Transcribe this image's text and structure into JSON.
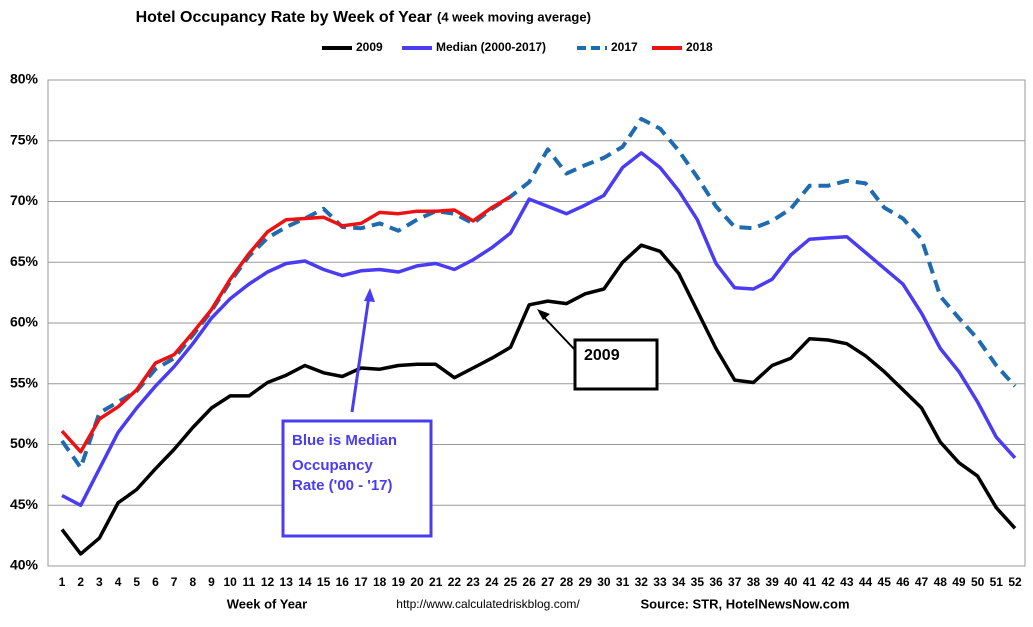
{
  "chart_data": {
    "type": "line",
    "title": "Hotel Occupancy Rate by  Week of Year",
    "subtitle": "(4 week moving average)",
    "x_label": "Week of Year",
    "source_url": "http://www.calculatedriskblog.com/",
    "source": "Source: STR, HotelNewsNow.com",
    "x": [
      1,
      2,
      3,
      4,
      5,
      6,
      7,
      8,
      9,
      10,
      11,
      12,
      13,
      14,
      15,
      16,
      17,
      18,
      19,
      20,
      21,
      22,
      23,
      24,
      25,
      26,
      27,
      28,
      29,
      30,
      31,
      32,
      33,
      34,
      35,
      36,
      37,
      38,
      39,
      40,
      41,
      42,
      43,
      44,
      45,
      46,
      47,
      48,
      49,
      50,
      51,
      52
    ],
    "xlim": [
      1,
      52
    ],
    "ylim": [
      40,
      80
    ],
    "yticks": [
      {
        "value": 40,
        "label": "40%"
      },
      {
        "value": 45,
        "label": "45%"
      },
      {
        "value": 50,
        "label": "50%"
      },
      {
        "value": 55,
        "label": "55%"
      },
      {
        "value": 60,
        "label": "60%"
      },
      {
        "value": 65,
        "label": "65%"
      },
      {
        "value": 70,
        "label": "70%"
      },
      {
        "value": 75,
        "label": "75%"
      },
      {
        "value": 80,
        "label": "80%"
      }
    ],
    "grid": true,
    "legend": "top",
    "series": [
      {
        "name": "2009",
        "color": "#000000",
        "dash": false,
        "values": [
          43.0,
          41.0,
          42.3,
          45.2,
          46.3,
          48.0,
          49.6,
          51.4,
          53.0,
          54.0,
          54.0,
          55.1,
          55.7,
          56.5,
          55.9,
          55.6,
          56.3,
          56.2,
          56.5,
          56.6,
          56.6,
          55.5,
          56.3,
          57.1,
          58.0,
          61.5,
          61.8,
          61.6,
          62.4,
          62.8,
          65.0,
          66.4,
          65.9,
          64.1,
          61.0,
          57.9,
          55.3,
          55.1,
          56.5,
          57.1,
          58.7,
          58.6,
          58.3,
          57.3,
          56.0,
          54.5,
          53.0,
          50.2,
          48.5,
          47.4,
          44.8,
          43.1
        ]
      },
      {
        "name": "Median (2000-2017)",
        "color": "#4a3cf2",
        "dash": false,
        "values": [
          45.8,
          45.0,
          48.0,
          51.0,
          53.0,
          54.8,
          56.4,
          58.3,
          60.4,
          62.0,
          63.2,
          64.2,
          64.9,
          65.1,
          64.4,
          63.9,
          64.3,
          64.4,
          64.2,
          64.7,
          64.9,
          64.4,
          65.2,
          66.2,
          67.4,
          70.2,
          69.6,
          69.0,
          69.7,
          70.5,
          72.8,
          74.0,
          72.8,
          70.9,
          68.5,
          64.9,
          62.9,
          62.8,
          63.6,
          65.6,
          66.9,
          67.0,
          67.1,
          65.8,
          64.5,
          63.2,
          60.8,
          57.9,
          56.0,
          53.5,
          50.6,
          48.9
        ]
      },
      {
        "name": "2017",
        "color": "#1f6bb0",
        "dash": true,
        "values": [
          50.3,
          48.1,
          52.6,
          53.5,
          54.4,
          56.2,
          57.1,
          59.0,
          61.0,
          63.4,
          65.5,
          67.0,
          67.9,
          68.6,
          69.4,
          67.9,
          67.8,
          68.2,
          67.6,
          68.5,
          69.2,
          69.0,
          68.2,
          69.4,
          70.4,
          71.6,
          74.3,
          72.3,
          73.0,
          73.6,
          74.5,
          76.8,
          76.0,
          74.2,
          72.0,
          69.6,
          67.9,
          67.8,
          68.4,
          69.4,
          71.3,
          71.3,
          71.7,
          71.5,
          69.5,
          68.6,
          66.9,
          62.2,
          60.4,
          58.7,
          56.5,
          54.8
        ]
      },
      {
        "name": "2018",
        "color": "#ee1111",
        "dash": false,
        "values": [
          51.1,
          49.4,
          52.1,
          53.1,
          54.5,
          56.7,
          57.4,
          59.2,
          61.1,
          63.6,
          65.7,
          67.5,
          68.5,
          68.6,
          68.7,
          68.0,
          68.2,
          69.1,
          69.0,
          69.2,
          69.2,
          69.3,
          68.4,
          69.5,
          70.4,
          null,
          null,
          null,
          null,
          null,
          null,
          null,
          null,
          null,
          null,
          null,
          null,
          null,
          null,
          null,
          null,
          null,
          null,
          null,
          null,
          null,
          null,
          null,
          null,
          null,
          null,
          null
        ]
      }
    ],
    "annotations": [
      {
        "text": "2009"
      },
      {
        "text": [
          "Blue is Median",
          "Occupancy",
          "Rate ('00 - '17)"
        ]
      }
    ]
  }
}
